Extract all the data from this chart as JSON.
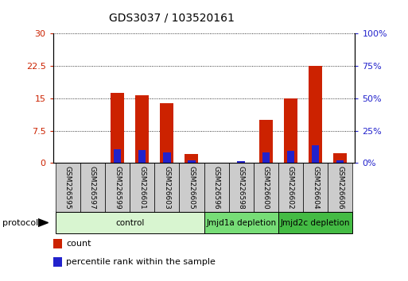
{
  "title": "GDS3037 / 103520161",
  "samples": [
    "GSM226595",
    "GSM226597",
    "GSM226599",
    "GSM226601",
    "GSM226603",
    "GSM226605",
    "GSM226596",
    "GSM226598",
    "GSM226600",
    "GSM226602",
    "GSM226604",
    "GSM226606"
  ],
  "count_values": [
    0,
    0,
    16.3,
    15.7,
    13.8,
    2.0,
    0,
    0,
    10.0,
    15.0,
    22.5,
    2.3
  ],
  "percentile_values": [
    0,
    0,
    10.5,
    10.0,
    8.0,
    1.8,
    0,
    1.5,
    8.0,
    9.5,
    13.5,
    2.0
  ],
  "left_ylim": [
    0,
    30
  ],
  "right_ylim": [
    0,
    100
  ],
  "left_yticks": [
    0,
    7.5,
    15,
    22.5,
    30
  ],
  "right_yticks": [
    0,
    25,
    50,
    75,
    100
  ],
  "left_yticklabels": [
    "0",
    "7.5",
    "15",
    "22.5",
    "30"
  ],
  "right_yticklabels": [
    "0%",
    "25%",
    "50%",
    "75%",
    "100%"
  ],
  "groups": [
    {
      "label": "control",
      "start": 0,
      "end": 6,
      "color": "#d8f5d0"
    },
    {
      "label": "Jmjd1a depletion",
      "start": 6,
      "end": 9,
      "color": "#77dd77"
    },
    {
      "label": "Jmjd2c depletion",
      "start": 9,
      "end": 12,
      "color": "#44bb44"
    }
  ],
  "bar_color": "#cc2200",
  "percentile_color": "#2222cc",
  "bar_width": 0.55,
  "legend_count_label": "count",
  "legend_percentile_label": "percentile rank within the sample",
  "protocol_label": "protocol",
  "left_tick_color": "#cc2200",
  "right_tick_color": "#2222cc",
  "sample_box_color": "#cccccc"
}
